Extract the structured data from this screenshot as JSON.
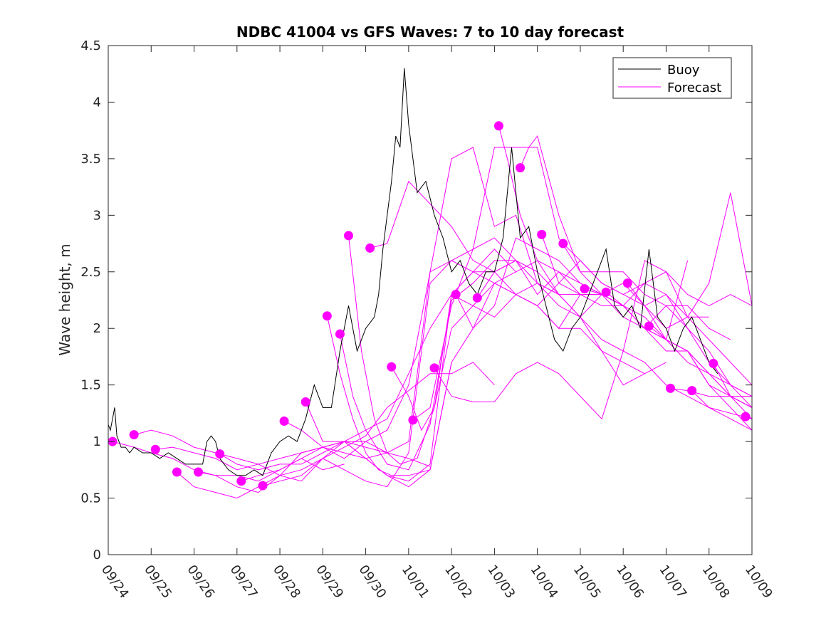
{
  "chart_data": {
    "type": "line",
    "title": "NDBC 41004 vs GFS Waves: 7 to 10 day forecast",
    "xlabel": "",
    "ylabel": "Wave height, m",
    "xlim": [
      0,
      15
    ],
    "ylim": [
      0,
      4.5
    ],
    "yticks": [
      0,
      0.5,
      1,
      1.5,
      2,
      2.5,
      3,
      3.5,
      4,
      4.5
    ],
    "ytick_labels": [
      "0",
      "0.5",
      "1",
      "1.5",
      "2",
      "2.5",
      "3",
      "3.5",
      "4",
      "4.5"
    ],
    "xticks": [
      0,
      1,
      2,
      3,
      4,
      5,
      6,
      7,
      8,
      9,
      10,
      11,
      12,
      13,
      14,
      15
    ],
    "xtick_labels": [
      "09/24",
      "09/25",
      "09/26",
      "09/27",
      "09/28",
      "09/29",
      "09/30",
      "10/01",
      "10/02",
      "10/03",
      "10/04",
      "10/05",
      "10/06",
      "10/07",
      "10/08",
      "10/09"
    ],
    "legend": {
      "placement": "top-right",
      "entries": [
        "Buoy",
        "Forecast"
      ]
    },
    "colors": {
      "buoy": "#000000",
      "forecast": "#ff00ff",
      "axis": "#262626"
    },
    "series": [
      {
        "name": "Buoy",
        "x": [
          0.0,
          0.05,
          0.1,
          0.15,
          0.2,
          0.3,
          0.4,
          0.5,
          0.6,
          0.8,
          1.0,
          1.2,
          1.4,
          1.6,
          1.8,
          2.0,
          2.2,
          2.3,
          2.4,
          2.5,
          2.6,
          2.8,
          3.0,
          3.2,
          3.4,
          3.6,
          3.8,
          4.0,
          4.2,
          4.4,
          4.6,
          4.8,
          5.0,
          5.2,
          5.4,
          5.6,
          5.8,
          6.0,
          6.2,
          6.3,
          6.4,
          6.5,
          6.6,
          6.7,
          6.8,
          6.9,
          7.0,
          7.2,
          7.4,
          7.6,
          7.8,
          8.0,
          8.2,
          8.4,
          8.6,
          8.8,
          9.0,
          9.2,
          9.4,
          9.6,
          9.8,
          10.0,
          10.2,
          10.4,
          10.6,
          10.8,
          11.0,
          11.2,
          11.4,
          11.6,
          11.8,
          12.0,
          12.2,
          12.4,
          12.6,
          12.8,
          13.0,
          13.2,
          13.4,
          13.6,
          13.8,
          14.0,
          14.2
        ],
        "y": [
          1.15,
          1.1,
          1.2,
          1.3,
          1.05,
          0.95,
          0.95,
          0.9,
          0.95,
          0.9,
          0.9,
          0.85,
          0.9,
          0.85,
          0.8,
          0.8,
          0.8,
          1.0,
          1.05,
          1.0,
          0.85,
          0.75,
          0.7,
          0.7,
          0.75,
          0.7,
          0.9,
          1.0,
          1.05,
          1.0,
          1.2,
          1.5,
          1.3,
          1.3,
          1.8,
          2.2,
          1.8,
          2.0,
          2.1,
          2.3,
          2.7,
          3.0,
          3.3,
          3.7,
          3.6,
          4.3,
          3.8,
          3.2,
          3.3,
          3.0,
          2.8,
          2.5,
          2.6,
          2.4,
          2.3,
          2.5,
          2.5,
          2.8,
          3.6,
          2.8,
          2.9,
          2.5,
          2.2,
          1.9,
          1.8,
          2.0,
          2.1,
          2.3,
          2.5,
          2.7,
          2.2,
          2.1,
          2.2,
          2.0,
          2.7,
          2.1,
          2.0,
          1.8,
          2.0,
          2.1,
          1.9,
          1.7,
          1.6
        ]
      },
      {
        "name": "Forecast 1",
        "x": [
          0.1,
          0.6,
          1.0,
          1.5,
          2.0,
          2.5,
          3.0,
          3.5,
          4.0,
          4.5,
          5.0,
          5.5
        ],
        "y": [
          1.0,
          0.95,
          0.9,
          0.85,
          0.75,
          0.7,
          0.7,
          0.65,
          0.75,
          0.85,
          0.75,
          0.8
        ]
      },
      {
        "name": "Forecast 2",
        "x": [
          0.6,
          1.0,
          1.5,
          2.0,
          2.5,
          3.0,
          3.5,
          4.0,
          4.5,
          5.0,
          5.5,
          6.0,
          6.5
        ],
        "y": [
          1.06,
          1.1,
          1.05,
          0.95,
          0.9,
          0.85,
          0.8,
          0.85,
          0.9,
          0.95,
          0.9,
          0.85,
          0.9
        ]
      },
      {
        "name": "Forecast 3",
        "x": [
          1.1,
          1.5,
          2.0,
          2.5,
          3.0,
          3.5,
          4.0,
          4.5,
          5.0,
          5.5,
          6.0,
          6.5,
          7.0,
          7.5
        ],
        "y": [
          0.93,
          0.95,
          0.9,
          0.85,
          0.75,
          0.8,
          0.7,
          0.65,
          0.85,
          1.0,
          0.95,
          0.9,
          0.85,
          0.78
        ]
      },
      {
        "name": "Forecast 4",
        "x": [
          1.6,
          2.0,
          2.5,
          3.0,
          3.5,
          4.0,
          4.5,
          5.0,
          5.5,
          6.0,
          6.5,
          7.0,
          7.5,
          8.0
        ],
        "y": [
          0.73,
          0.6,
          0.55,
          0.5,
          0.6,
          0.7,
          0.9,
          0.95,
          1.0,
          0.85,
          0.7,
          0.6,
          0.75,
          1.7
        ]
      },
      {
        "name": "Forecast 5",
        "x": [
          2.1,
          2.5,
          3.0,
          3.5,
          4.0,
          4.5,
          5.0,
          5.5,
          6.0,
          6.5,
          7.0,
          7.5,
          8.0,
          8.5,
          9.0
        ],
        "y": [
          0.73,
          0.7,
          0.6,
          0.55,
          0.7,
          0.75,
          0.85,
          0.95,
          1.05,
          1.3,
          1.45,
          1.6,
          1.6,
          1.7,
          1.5
        ]
      },
      {
        "name": "Forecast 6",
        "x": [
          2.6,
          3.0,
          3.5,
          4.0,
          4.5,
          5.0,
          5.5,
          6.0,
          6.5,
          7.0,
          7.5,
          8.0,
          8.5,
          9.0,
          9.5
        ],
        "y": [
          0.89,
          0.8,
          0.75,
          0.8,
          0.8,
          0.9,
          1.0,
          1.1,
          1.2,
          1.6,
          2.0,
          2.3,
          2.5,
          2.7,
          2.5
        ]
      },
      {
        "name": "Forecast 7",
        "x": [
          3.1,
          3.5,
          4.0,
          4.5,
          5.0,
          5.5,
          6.0,
          6.5,
          7.0,
          7.5,
          8.0,
          8.5,
          9.0,
          9.5,
          10.0
        ],
        "y": [
          0.65,
          0.7,
          0.75,
          0.85,
          0.95,
          1.0,
          1.0,
          1.1,
          1.5,
          2.5,
          2.6,
          2.7,
          2.8,
          2.6,
          2.5
        ]
      },
      {
        "name": "Forecast 8",
        "x": [
          3.6,
          4.0,
          4.5,
          5.0,
          5.5,
          6.0,
          6.5,
          7.0,
          7.5,
          8.0,
          8.5,
          9.0,
          9.5,
          10.0,
          10.5
        ],
        "y": [
          0.61,
          0.65,
          0.7,
          0.85,
          0.75,
          0.65,
          0.6,
          0.9,
          2.4,
          2.6,
          2.5,
          2.4,
          2.3,
          2.4,
          2.3
        ]
      },
      {
        "name": "Forecast 9",
        "x": [
          4.1,
          4.5,
          5.0,
          5.5,
          6.0,
          6.5,
          7.0,
          7.5,
          8.0,
          8.5,
          9.0,
          9.5,
          10.0,
          10.5,
          11.0
        ],
        "y": [
          1.18,
          1.1,
          0.95,
          0.85,
          1.0,
          0.9,
          1.0,
          2.5,
          3.5,
          3.6,
          2.9,
          3.0,
          2.4,
          2.3,
          2.3
        ]
      },
      {
        "name": "Forecast 10",
        "x": [
          4.6,
          5.0,
          5.5,
          6.0,
          6.5,
          7.0,
          7.5,
          8.0,
          8.5,
          9.0,
          9.5,
          10.0,
          10.5,
          11.0,
          11.5
        ],
        "y": [
          1.35,
          1.0,
          1.0,
          0.85,
          0.7,
          0.65,
          0.8,
          2.3,
          2.5,
          2.5,
          2.3,
          2.2,
          2.0,
          2.3,
          2.3
        ]
      },
      {
        "name": "Forecast 11",
        "x": [
          5.1,
          5.4,
          5.7,
          6.0,
          6.3,
          6.6,
          7.0,
          7.5,
          8.0,
          8.5,
          9.0,
          9.5,
          10.0,
          10.5,
          11.0,
          11.5,
          12.0
        ],
        "y": [
          2.11,
          1.6,
          1.2,
          0.9,
          0.75,
          0.7,
          0.7,
          0.75,
          1.7,
          2.0,
          2.4,
          2.5,
          2.6,
          2.5,
          2.3,
          2.2,
          2.2
        ]
      },
      {
        "name": "Forecast 12",
        "x": [
          5.4,
          5.7,
          6.0,
          6.5,
          7.0,
          7.5,
          8.0,
          8.5,
          9.0,
          9.5,
          10.0,
          10.5,
          11.0,
          11.5,
          12.0,
          12.5
        ],
        "y": [
          1.95,
          1.4,
          1.1,
          0.8,
          0.75,
          1.15,
          2.25,
          2.4,
          2.6,
          2.6,
          2.4,
          2.2,
          2.1,
          1.8,
          1.5,
          1.6
        ]
      },
      {
        "name": "Forecast 13",
        "x": [
          5.6,
          5.9,
          6.2,
          6.5,
          6.8,
          7.2,
          7.6,
          8.0,
          8.5,
          9.0,
          9.5,
          10.0,
          10.5,
          11.0,
          11.5,
          12.0,
          12.5,
          13.0
        ],
        "y": [
          2.82,
          1.8,
          1.2,
          0.9,
          0.8,
          0.85,
          1.3,
          2.0,
          2.2,
          2.4,
          2.3,
          2.2,
          2.0,
          2.0,
          1.8,
          1.7,
          1.6,
          1.7
        ]
      },
      {
        "name": "Forecast 14",
        "x": [
          6.1,
          6.5,
          7.0,
          7.5,
          8.0,
          8.5,
          9.0,
          9.5,
          10.0,
          10.5,
          11.0,
          11.5,
          12.0,
          12.5,
          13.0,
          13.5
        ],
        "y": [
          2.71,
          2.75,
          3.3,
          3.1,
          2.9,
          2.6,
          2.5,
          2.6,
          2.5,
          2.3,
          2.1,
          2.3,
          2.4,
          2.2,
          1.9,
          2.6
        ]
      },
      {
        "name": "Forecast 15",
        "x": [
          6.6,
          7.0,
          7.3,
          7.6,
          8.0,
          8.5,
          9.0,
          9.5,
          10.0,
          10.5,
          11.0,
          11.5,
          12.0,
          12.5,
          13.0,
          13.5,
          14.0
        ],
        "y": [
          1.66,
          1.4,
          1.1,
          1.3,
          2.3,
          2.2,
          2.1,
          2.3,
          2.2,
          2.4,
          2.6,
          2.4,
          2.3,
          2.2,
          2.0,
          2.1,
          2.1
        ]
      },
      {
        "name": "Forecast 16",
        "x": [
          7.1,
          7.5,
          8.0,
          8.5,
          9.0,
          9.5,
          10.0,
          10.5,
          11.0,
          11.5,
          12.0,
          12.5,
          13.0,
          13.5,
          14.0,
          14.5
        ],
        "y": [
          1.19,
          1.3,
          2.2,
          2.7,
          3.6,
          3.6,
          3.6,
          2.8,
          2.5,
          2.5,
          2.5,
          2.3,
          2.2,
          2.2,
          2.0,
          1.9
        ]
      },
      {
        "name": "Forecast 17",
        "x": [
          7.6,
          8.0,
          8.5,
          9.0,
          9.5,
          10.0,
          10.5,
          11.0,
          11.5,
          12.0,
          12.5,
          13.0,
          13.5,
          14.0,
          14.5,
          15.0
        ],
        "y": [
          1.65,
          1.4,
          1.35,
          1.35,
          1.6,
          1.7,
          1.6,
          1.4,
          1.2,
          1.8,
          2.6,
          2.5,
          2.1,
          2.4,
          3.2,
          2.2
        ]
      },
      {
        "name": "Forecast 18",
        "x": [
          8.1,
          8.5,
          9.0,
          9.5,
          10.0,
          10.5,
          11.0,
          11.5,
          12.0,
          12.5,
          13.0,
          13.5,
          14.0,
          14.5,
          15.0
        ],
        "y": [
          2.3,
          2.0,
          2.2,
          2.8,
          2.7,
          2.6,
          2.4,
          2.3,
          2.2,
          2.0,
          1.9,
          1.8,
          1.5,
          1.4,
          1.3
        ]
      },
      {
        "name": "Forecast 19",
        "x": [
          8.6,
          9.0,
          9.5,
          10.0,
          10.5,
          11.0,
          11.5,
          12.0,
          12.5,
          13.0,
          13.5,
          14.0,
          14.5,
          15.0
        ],
        "y": [
          2.27,
          2.5,
          2.6,
          2.3,
          2.5,
          2.4,
          2.3,
          2.2,
          2.0,
          1.8,
          1.8,
          1.6,
          1.4,
          1.4
        ]
      },
      {
        "name": "Forecast 20",
        "x": [
          9.1,
          9.3,
          9.6,
          10.0,
          10.5,
          11.0,
          11.5,
          12.0,
          12.5,
          13.0,
          13.5,
          14.0,
          14.5,
          15.0
        ],
        "y": [
          3.79,
          3.5,
          3.0,
          2.6,
          2.3,
          2.1,
          1.9,
          1.8,
          1.7,
          1.5,
          1.4,
          1.3,
          1.2,
          1.1
        ]
      },
      {
        "name": "Forecast 21",
        "x": [
          9.6,
          9.8,
          10.0,
          10.5,
          11.0,
          11.5,
          12.0,
          12.5,
          13.0,
          13.5,
          14.0,
          14.5,
          15.0
        ],
        "y": [
          3.42,
          3.6,
          3.7,
          3.0,
          2.5,
          2.3,
          2.2,
          2.4,
          2.3,
          2.0,
          1.8,
          1.5,
          1.3
        ]
      },
      {
        "name": "Forecast 22",
        "x": [
          10.1,
          10.5,
          11.0,
          11.5,
          12.0,
          12.5,
          13.0,
          13.5,
          14.0,
          14.5,
          15.0
        ],
        "y": [
          2.83,
          2.4,
          2.3,
          2.3,
          2.2,
          2.0,
          2.2,
          2.0,
          1.7,
          1.5,
          1.4
        ]
      },
      {
        "name": "Forecast 23",
        "x": [
          10.6,
          11.0,
          11.5,
          12.0,
          12.5,
          13.0,
          13.5,
          14.0,
          14.5,
          15.0
        ],
        "y": [
          2.75,
          2.6,
          2.4,
          2.3,
          2.4,
          2.5,
          2.3,
          2.2,
          2.3,
          2.2
        ]
      },
      {
        "name": "Forecast 24",
        "x": [
          11.1,
          11.5,
          12.0,
          12.5,
          13.0,
          13.5,
          14.0,
          14.5,
          15.0
        ],
        "y": [
          2.35,
          2.3,
          2.1,
          2.0,
          1.9,
          1.8,
          1.5,
          1.3,
          1.1
        ]
      },
      {
        "name": "Forecast 25",
        "x": [
          11.6,
          12.0,
          12.5,
          13.0,
          13.5,
          14.0,
          14.5,
          15.0
        ],
        "y": [
          2.32,
          2.2,
          2.1,
          1.9,
          1.7,
          1.6,
          1.4,
          1.3
        ]
      },
      {
        "name": "Forecast 26",
        "x": [
          12.1,
          12.5,
          13.0,
          13.5,
          14.0,
          14.5,
          15.0
        ],
        "y": [
          2.4,
          2.2,
          2.3,
          2.1,
          1.9,
          1.7,
          1.5
        ]
      },
      {
        "name": "Forecast 27",
        "x": [
          12.6,
          13.0,
          13.5,
          14.0,
          14.5,
          15.0
        ],
        "y": [
          2.02,
          1.9,
          1.8,
          1.6,
          1.5,
          1.4
        ]
      },
      {
        "name": "Forecast 28",
        "x": [
          13.1,
          13.5,
          14.0,
          14.5,
          15.0
        ],
        "y": [
          1.47,
          1.45,
          1.4,
          1.4,
          1.2
        ]
      },
      {
        "name": "Forecast 29",
        "x": [
          13.6,
          14.0,
          14.5,
          15.0
        ],
        "y": [
          1.45,
          1.3,
          1.25,
          1.2
        ]
      },
      {
        "name": "Forecast 30",
        "x": [
          14.1,
          14.5,
          15.0
        ],
        "y": [
          1.69,
          1.4,
          1.3
        ]
      },
      {
        "name": "Forecast 31",
        "x": [
          14.85,
          15.0
        ],
        "y": [
          1.22,
          1.2
        ]
      }
    ]
  }
}
